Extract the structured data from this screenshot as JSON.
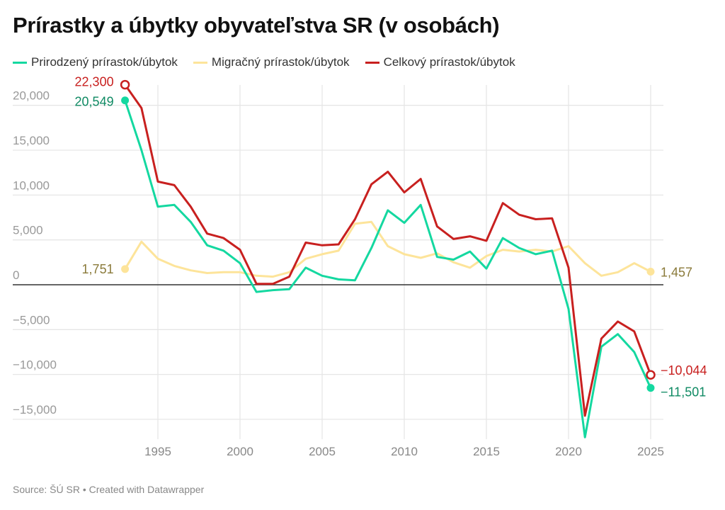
{
  "chart_data": {
    "type": "line",
    "title": "Prírastky a úbytky obyvateľstva SR (v osobách)",
    "source": "Source: ŠÚ SR • Created with Datawrapper",
    "x": [
      1993,
      1994,
      1995,
      1996,
      1997,
      1998,
      1999,
      2000,
      2001,
      2002,
      2003,
      2004,
      2005,
      2006,
      2007,
      2008,
      2009,
      2010,
      2011,
      2012,
      2013,
      2014,
      2015,
      2016,
      2017,
      2018,
      2019,
      2020,
      2021,
      2022,
      2023,
      2024,
      2025
    ],
    "xticks": [
      1995,
      2000,
      2005,
      2010,
      2015,
      2020,
      2025
    ],
    "xtick_labels": [
      "1995",
      "2000",
      "2005",
      "2010",
      "2015",
      "2020",
      "2025"
    ],
    "ylim": [
      -16500,
      22500
    ],
    "yticks": [
      20000,
      15000,
      10000,
      5000,
      0,
      -5000,
      -10000,
      -15000
    ],
    "ytick_labels": [
      "20,000",
      "15,000",
      "10,000",
      "5,000",
      "0",
      "−5,000",
      "−10,000",
      "−15,000"
    ],
    "grid": true,
    "legend_placement": "top-left",
    "series": [
      {
        "name": "Prirodzený prírastok/úbytok",
        "color": "#14d8a0",
        "label_color": "#0f8a63",
        "marker": "filled",
        "values": [
          20549,
          15000,
          8700,
          8900,
          7000,
          4400,
          3800,
          2400,
          -800,
          -600,
          -500,
          1900,
          1000,
          600,
          500,
          4100,
          8300,
          6900,
          8900,
          3100,
          2800,
          3700,
          1800,
          5200,
          4100,
          3400,
          3800,
          -2700,
          -17000,
          -6900,
          -5500,
          -7500,
          -11501
        ],
        "start_label": "20,549",
        "end_label": "−11,501"
      },
      {
        "name": "Migračný prírastok/úbytok",
        "color": "#fde49a",
        "label_color": "#8a7a3a",
        "marker": "filled",
        "values": [
          1751,
          4800,
          2900,
          2100,
          1600,
          1300,
          1400,
          1400,
          1000,
          900,
          1400,
          2900,
          3400,
          3800,
          6800,
          7000,
          4300,
          3400,
          3000,
          3500,
          2500,
          1900,
          3200,
          3900,
          3700,
          3900,
          3700,
          4300,
          2400,
          1000,
          1400,
          2400,
          1457
        ],
        "start_label": "1,751",
        "end_label": "1,457"
      },
      {
        "name": "Celkový prírastok/úbytok",
        "color": "#c8201f",
        "label_color": "#c8201f",
        "marker": "hollow",
        "values": [
          22300,
          19700,
          11500,
          11100,
          8700,
          5700,
          5200,
          3900,
          100,
          100,
          900,
          4700,
          4400,
          4500,
          7300,
          11200,
          12600,
          10300,
          11800,
          6500,
          5100,
          5400,
          4900,
          9100,
          7800,
          7300,
          7400,
          1900,
          -14600,
          -6000,
          -4100,
          -5200,
          -10044
        ],
        "start_label": "22,300",
        "end_label": "−10,044"
      }
    ]
  }
}
